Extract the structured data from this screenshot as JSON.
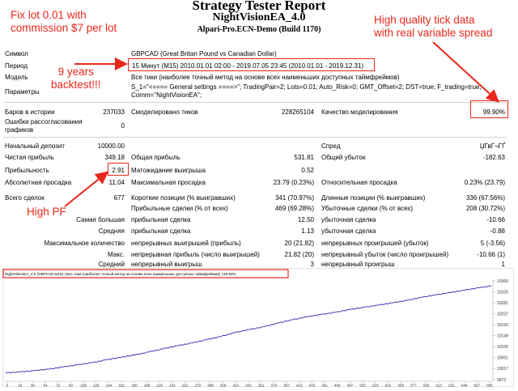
{
  "header": {
    "title": "Strategy Tester Report",
    "ea_name": "NightVisionEA_4.0",
    "server": "Alpari-Pro.ECN-Demo (Build 1170)"
  },
  "notes": {
    "fix_lot_line1": "Fix lot 0.01 with",
    "fix_lot_line2": "commission $7 per lot",
    "quality_line1": "High quality tick data",
    "quality_line2": "with real variable spread",
    "years_line1": "9 years",
    "years_line2": "backtest!!!",
    "high_pf": "High PF",
    "accent_color": "#e8271b"
  },
  "info": {
    "symbol_label": "Символ",
    "symbol_value": "GBPCAD (Great Britan Pound vs Canadian Dollar)",
    "period_label": "Период",
    "period_value": "15 Минут (M15) 2010.01.01 02:00 - 2019.07.05 23:45 (2010.01.01 - 2019.12.31)",
    "model_label": "Модель",
    "model_value": "Все тики (наиболее точный метод на основе всех наименьших доступных таймфреймов)",
    "params_label": "Параметры",
    "params_value_1": "S_1=\"<==== General settings ====>\"; TradingPair=2; Lots=0.01; Auto_Risk=0; GMT_Offset=2; DST=true; F_trading=true;",
    "params_value_2": "Comm=\"NightVisionEA\";"
  },
  "stats": {
    "bars_label": "Баров в истории",
    "bars_value": "237033",
    "ticks_label": "Смоделировано тиков",
    "ticks_value": "228265104",
    "quality_label": "Качество моделирования",
    "quality_value": "99.90%",
    "errors_label_1": "Ошибки рассогласования",
    "errors_label_2": "графиков",
    "errors_value": "0",
    "deposit_label": "Начальный депозит",
    "deposit_value": "10000.00",
    "spread_label": "Спред",
    "spread_value": "ЏГвГ¬ГҐ",
    "net_label": "Чистая прибыль",
    "net_value": "349.18",
    "gross_profit_label": "Общая прибыль",
    "gross_profit_value": "531.81",
    "gross_loss_label": "Общий убыток",
    "gross_loss_value": "-182.63",
    "pf_label": "Прибыльность",
    "pf_value": "2.91",
    "expected_label": "Матожидание выигрыша",
    "expected_value": "0.52",
    "abs_dd_label": "Абсолютная просадка",
    "abs_dd_value": "11.04",
    "max_dd_label": "Максимальная просадка",
    "max_dd_value": "23.79 (0.23%)",
    "rel_dd_label": "Относительная просадка",
    "rel_dd_value": "0.23% (23.79)",
    "total_label": "Всего сделок",
    "total_value": "677",
    "short_label": "Короткие позиции (% выигравших)",
    "short_value": "341 (70.97%)",
    "long_label": "Длинные позиции (% выигравших)",
    "long_value": "336 (67.56%)",
    "profit_trades_label": "Прибыльные сделки (% от всех)",
    "profit_trades_value": "469 (69.28%)",
    "loss_trades_label": "Убыточные сделки (% от всех)",
    "loss_trades_value": "208 (30.72%)",
    "largest_label": "Самая большая",
    "largest_profit_label": "прибыльная сделка",
    "largest_profit_value": "12.50",
    "largest_loss_label": "убыточная сделка",
    "largest_loss_value": "-10.66",
    "average_label": "Средняя",
    "average_profit_label": "прибыльная сделка",
    "average_profit_value": "1.13",
    "average_loss_label": "убыточная сделка",
    "average_loss_value": "-0.88",
    "max_count_label": "Максимальное количество",
    "max_cons_wins_label": "непрерывных выигрышей (прибыль)",
    "max_cons_wins_value": "20 (21.82)",
    "max_cons_losses_label": "непрерывных проигрышей (убыток)",
    "max_cons_losses_value": "5 (-3.56)",
    "max_label": "Макс.",
    "max_cons_profit_label": "непрерывная прибыль (число выигрышей)",
    "max_cons_profit_value": "21.82 (20)",
    "max_cons_loss_label": "непрерывный убыток (число проигрышей)",
    "max_cons_loss_value": "-10.66 (1)",
    "avg_label": "Средний",
    "avg_cons_wins_label": "непрерывный выигрыш",
    "avg_cons_wins_value": "3",
    "avg_cons_losses_label": "непрерывный проигрыш",
    "avg_cons_losses_value": "1"
  },
  "chart_data": {
    "type": "line",
    "title": "NightVisionEA_4.0 (GBPCAD,M15) | Все тики (наиболее точный метод на основе всех наименьших доступных таймфреймов) | 99.90%",
    "line_color": "#2a2ab0",
    "ylim": [
      9973,
      10369
    ],
    "y_ticks": [
      "10369",
      "10325",
      "10281",
      "10237",
      "10193",
      "10149",
      "10105",
      "10061",
      "10017",
      "9973"
    ],
    "x_ticks": [
      "0",
      "18",
      "36",
      "54",
      "72",
      "90",
      "108",
      "126",
      "144",
      "162",
      "180",
      "198",
      "216",
      "234",
      "252",
      "270",
      "288",
      "306",
      "324",
      "342",
      "361",
      "379",
      "397",
      "415",
      "433",
      "451",
      "469",
      "487",
      "505",
      "523",
      "541",
      "559",
      "577",
      "595",
      "613",
      "631",
      "649",
      "667",
      "685"
    ],
    "xlim": [
      0,
      677
    ],
    "x": [
      0,
      20,
      40,
      60,
      80,
      100,
      120,
      140,
      160,
      180,
      200,
      220,
      240,
      260,
      280,
      300,
      320,
      340,
      360,
      380,
      400,
      420,
      440,
      460,
      480,
      500,
      520,
      540,
      560,
      580,
      600,
      620,
      640,
      660,
      677
    ],
    "y": [
      10000,
      10004,
      10009,
      10015,
      10024,
      10032,
      10041,
      10052,
      10062,
      10072,
      10084,
      10097,
      10109,
      10120,
      10133,
      10146,
      10162,
      10174,
      10185,
      10200,
      10213,
      10225,
      10234,
      10243,
      10254,
      10263,
      10272,
      10281,
      10291,
      10303,
      10313,
      10322,
      10332,
      10341,
      10349
    ]
  }
}
